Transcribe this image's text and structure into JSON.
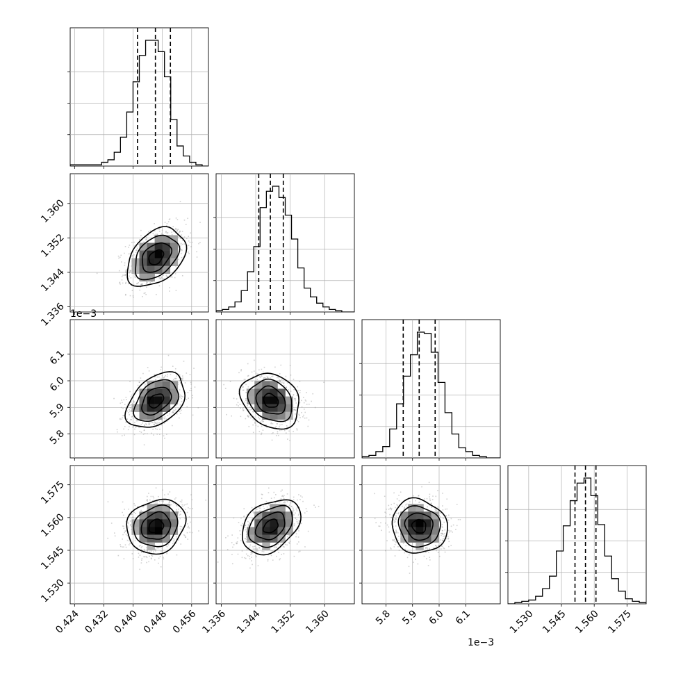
{
  "chart_data": {
    "type": "corner",
    "title": "",
    "grid": true,
    "quantile_lines": "dashed",
    "parameters": [
      {
        "range": [
          0.4228,
          0.4606
        ],
        "ticks": [
          "0.424",
          "0.432",
          "0.440",
          "0.448",
          "0.456"
        ],
        "tick_values": [
          0.424,
          0.432,
          0.44,
          0.448,
          0.456
        ],
        "offset_text": "",
        "quantiles": [
          0.4412,
          0.4461,
          0.4502
        ],
        "hist": [
          1,
          1,
          1,
          1,
          1,
          3,
          5,
          11,
          23,
          43,
          67,
          88,
          100,
          100,
          91,
          71,
          37,
          16,
          8,
          3,
          1,
          0
        ]
      },
      {
        "range": [
          1.3348,
          1.3669
        ],
        "ticks": [
          "1.336",
          "1.344",
          "1.352",
          "1.360"
        ],
        "tick_values": [
          1.336,
          1.344,
          1.352,
          1.36
        ],
        "offset_text": "",
        "quantiles": [
          1.3447,
          1.3474,
          1.3504
        ],
        "hist": [
          1,
          2,
          4,
          8,
          17,
          32,
          52,
          83,
          96,
          100,
          91,
          77,
          58,
          35,
          19,
          12,
          7,
          4,
          2,
          1,
          0,
          0
        ]
      },
      {
        "range": [
          5.71,
          6.23
        ],
        "ticks": [
          "5.8",
          "5.9",
          "6.0",
          "6.1"
        ],
        "tick_values": [
          5.8,
          5.9,
          6.0,
          6.1
        ],
        "offset_text": "1e−3",
        "quantiles": [
          5.865,
          5.925,
          5.985
        ],
        "hist": [
          1,
          2,
          5,
          9,
          23,
          43,
          65,
          82,
          100,
          99,
          84,
          60,
          36,
          19,
          8,
          5,
          2,
          1,
          0,
          0
        ]
      },
      {
        "range": [
          1.5205,
          1.5838
        ],
        "ticks": [
          "1.530",
          "1.545",
          "1.560",
          "1.575"
        ],
        "tick_values": [
          1.53,
          1.545,
          1.56,
          1.575
        ],
        "offset_text": "",
        "quantiles": [
          1.5512,
          1.556,
          1.5608
        ],
        "hist": [
          0,
          1,
          2,
          3,
          6,
          12,
          22,
          42,
          62,
          82,
          96,
          100,
          86,
          63,
          38,
          20,
          10,
          4,
          2,
          1
        ]
      }
    ],
    "pairs": [
      {
        "row": 1,
        "col": 0,
        "mean": [
          0.4463,
          1.3475
        ],
        "sd": [
          0.004,
          0.0034
        ],
        "rho": 0.38
      },
      {
        "row": 2,
        "col": 0,
        "mean": [
          0.4463,
          5.925
        ],
        "sd": [
          0.004,
          0.052
        ],
        "rho": 0.4
      },
      {
        "row": 2,
        "col": 1,
        "mean": [
          1.3475,
          5.925
        ],
        "sd": [
          0.0034,
          0.052
        ],
        "rho": -0.22
      },
      {
        "row": 3,
        "col": 0,
        "mean": [
          0.4463,
          1.556
        ],
        "sd": [
          0.004,
          0.0062
        ],
        "rho": 0.15
      },
      {
        "row": 3,
        "col": 1,
        "mean": [
          1.3475,
          1.556
        ],
        "sd": [
          0.0034,
          0.0062
        ],
        "rho": 0.35
      },
      {
        "row": 3,
        "col": 2,
        "mean": [
          5.925,
          1.556
        ],
        "sd": [
          0.052,
          0.0062
        ],
        "rho": -0.08
      }
    ],
    "contour_levels_sigma": [
      0.5,
      1.0,
      1.5,
      2.0
    ],
    "colors": {
      "line": "#000000",
      "grid": "#b0b0b0",
      "points": "#9a9a9a",
      "density_dark": "#000000",
      "density_light": "#ffffff"
    }
  },
  "labels": {
    "row1_offset": "1e−3",
    "bottom_offset": "1e−3"
  }
}
